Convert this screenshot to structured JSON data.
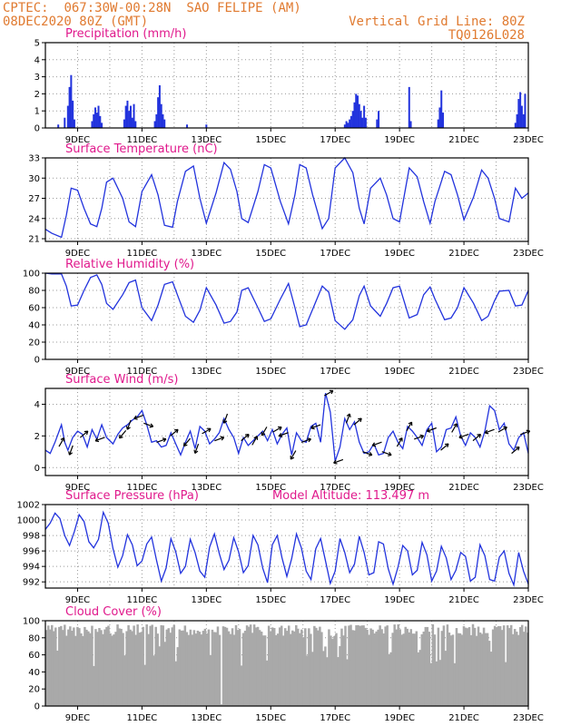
{
  "header": {
    "source": "CPTEC:",
    "coords": "067:30W-00:28N",
    "location": "SAO FELIPE (AM)",
    "date": "08DEC2020 80Z (GMT)",
    "grid_note": "Vertical Grid Line: 80Z",
    "code": "TQ0126L028"
  },
  "colors": {
    "header_text": "#e07a30",
    "title_text": "#e0198c",
    "series": "#2233dd",
    "cloud": "#a9a9a9"
  },
  "x_ticks": [
    "9DEC",
    "11DEC",
    "13DEC",
    "15DEC",
    "17DEC",
    "19DEC",
    "21DEC",
    "23DEC"
  ],
  "x_range_days": [
    8.0,
    23.0
  ],
  "chart_data": [
    {
      "id": "precip",
      "type": "bar",
      "title": "Precipitation (mm/h)",
      "ylim": [
        0,
        5
      ],
      "yticks": [
        "0",
        "1",
        "2",
        "3",
        "4",
        "5"
      ],
      "x": [
        8.4,
        8.6,
        8.7,
        8.75,
        8.8,
        8.85,
        8.9,
        9.45,
        9.5,
        9.55,
        9.6,
        9.65,
        9.7,
        9.75,
        10.45,
        10.5,
        10.55,
        10.6,
        10.65,
        10.7,
        10.75,
        10.8,
        11.4,
        11.45,
        11.5,
        11.55,
        11.6,
        11.65,
        11.7,
        12.4,
        13.0,
        17.3,
        17.35,
        17.4,
        17.45,
        17.5,
        17.55,
        17.6,
        17.65,
        17.7,
        17.75,
        17.8,
        17.85,
        17.9,
        17.95,
        18.3,
        18.35,
        19.3,
        19.35,
        20.2,
        20.25,
        20.3,
        20.35,
        22.6,
        22.65,
        22.7,
        22.75,
        22.8,
        22.85,
        22.9
      ],
      "values": [
        0.2,
        0.6,
        1.3,
        2.4,
        3.1,
        1.6,
        0.5,
        0.4,
        0.8,
        1.2,
        0.9,
        1.3,
        0.7,
        0.3,
        0.5,
        1.3,
        1.6,
        1.0,
        1.3,
        0.6,
        1.4,
        0.4,
        0.4,
        0.8,
        1.8,
        2.5,
        1.4,
        0.8,
        0.5,
        0.2,
        0.2,
        0.2,
        0.4,
        0.3,
        0.5,
        0.7,
        1.0,
        1.5,
        2.0,
        1.9,
        1.4,
        1.0,
        0.6,
        1.3,
        0.6,
        0.5,
        1.0,
        2.4,
        0.4,
        0.5,
        1.2,
        2.2,
        0.9,
        0.3,
        0.8,
        1.7,
        2.1,
        1.3,
        0.8,
        2.0
      ]
    },
    {
      "id": "temp",
      "type": "line",
      "title": "Surface Temperature (nC)",
      "ylim": [
        20.6,
        33
      ],
      "yticks": [
        "21",
        "24",
        "27",
        "30",
        "33"
      ],
      "yticks_values": [
        21,
        24,
        27,
        30,
        33
      ],
      "x": [
        8.0,
        8.2,
        8.5,
        8.65,
        8.8,
        9.0,
        9.2,
        9.4,
        9.6,
        9.75,
        9.9,
        10.1,
        10.4,
        10.6,
        10.8,
        11.0,
        11.3,
        11.5,
        11.7,
        11.95,
        12.1,
        12.35,
        12.6,
        12.8,
        13.0,
        13.3,
        13.55,
        13.75,
        13.95,
        14.1,
        14.3,
        14.6,
        14.8,
        15.0,
        15.3,
        15.55,
        15.75,
        15.9,
        16.1,
        16.3,
        16.6,
        16.8,
        17.0,
        17.3,
        17.55,
        17.75,
        17.9,
        18.1,
        18.4,
        18.6,
        18.8,
        19.0,
        19.3,
        19.55,
        19.75,
        19.95,
        20.1,
        20.4,
        20.6,
        20.8,
        21.0,
        21.3,
        21.55,
        21.75,
        21.95,
        22.1,
        22.4,
        22.6,
        22.8,
        23.0
      ],
      "values": [
        22.4,
        21.8,
        21.2,
        24.5,
        28.5,
        28.2,
        25.5,
        23.2,
        22.8,
        25.5,
        29.4,
        30.0,
        27.0,
        23.5,
        22.8,
        28.0,
        30.5,
        27.5,
        23.0,
        22.7,
        26.5,
        31.0,
        31.8,
        27.0,
        23.3,
        27.8,
        32.3,
        31.3,
        28.0,
        24.0,
        23.4,
        28.0,
        32.0,
        31.5,
        26.5,
        23.2,
        27.5,
        32.0,
        31.5,
        27.5,
        22.5,
        24.0,
        31.5,
        33.0,
        30.8,
        25.5,
        23.2,
        28.5,
        30.0,
        27.5,
        24.0,
        23.5,
        31.5,
        30.2,
        26.5,
        23.3,
        26.5,
        31.0,
        30.5,
        27.5,
        23.8,
        27.2,
        31.2,
        30.0,
        27.0,
        24.0,
        23.5,
        28.5,
        27.0,
        27.8
      ]
    },
    {
      "id": "rh",
      "type": "line",
      "title": "Relative Humidity (%)",
      "ylim": [
        0,
        100
      ],
      "yticks": [
        "0",
        "20",
        "40",
        "60",
        "80",
        "100"
      ],
      "x": [
        8.0,
        8.2,
        8.5,
        8.65,
        8.8,
        9.0,
        9.2,
        9.4,
        9.6,
        9.75,
        9.9,
        10.1,
        10.4,
        10.6,
        10.8,
        11.0,
        11.3,
        11.5,
        11.7,
        11.95,
        12.1,
        12.35,
        12.6,
        12.8,
        13.0,
        13.3,
        13.55,
        13.75,
        13.95,
        14.1,
        14.3,
        14.6,
        14.8,
        15.0,
        15.3,
        15.55,
        15.75,
        15.9,
        16.1,
        16.3,
        16.6,
        16.8,
        17.0,
        17.3,
        17.55,
        17.75,
        17.9,
        18.1,
        18.4,
        18.6,
        18.8,
        19.0,
        19.3,
        19.55,
        19.75,
        19.95,
        20.1,
        20.4,
        20.6,
        20.8,
        21.0,
        21.3,
        21.55,
        21.75,
        21.95,
        22.1,
        22.4,
        22.6,
        22.8,
        23.0
      ],
      "values": [
        100,
        99,
        99,
        85,
        62,
        63,
        80,
        95,
        98,
        87,
        65,
        58,
        75,
        89,
        92,
        60,
        45,
        63,
        87,
        90,
        75,
        50,
        43,
        57,
        83,
        63,
        42,
        44,
        55,
        80,
        83,
        60,
        44,
        47,
        70,
        88,
        60,
        38,
        40,
        58,
        85,
        78,
        45,
        35,
        46,
        74,
        85,
        62,
        50,
        65,
        83,
        85,
        48,
        52,
        75,
        84,
        70,
        46,
        48,
        60,
        83,
        65,
        45,
        50,
        68,
        79,
        80,
        62,
        63,
        80
      ]
    },
    {
      "id": "wind",
      "type": "line",
      "title": "Surface Wind (m/s)",
      "ylim": [
        -0.5,
        5
      ],
      "yticks": [
        "0",
        "2",
        "4"
      ],
      "yticks_values": [
        0,
        2,
        4
      ],
      "x": [
        8.0,
        8.15,
        8.3,
        8.5,
        8.6,
        8.7,
        8.85,
        9.0,
        9.15,
        9.3,
        9.45,
        9.6,
        9.75,
        9.9,
        10.1,
        10.25,
        10.4,
        10.55,
        10.7,
        10.85,
        11.0,
        11.15,
        11.3,
        11.45,
        11.6,
        11.75,
        11.9,
        12.05,
        12.2,
        12.35,
        12.5,
        12.65,
        12.8,
        12.95,
        13.1,
        13.25,
        13.4,
        13.55,
        13.7,
        13.85,
        14.0,
        14.15,
        14.3,
        14.45,
        14.6,
        14.75,
        14.9,
        15.05,
        15.2,
        15.35,
        15.5,
        15.65,
        15.8,
        15.95,
        16.1,
        16.25,
        16.4,
        16.55,
        16.7,
        16.85,
        17.0,
        17.15,
        17.3,
        17.45,
        17.6,
        17.75,
        17.9,
        18.05,
        18.2,
        18.35,
        18.5,
        18.65,
        18.8,
        18.95,
        19.1,
        19.25,
        19.4,
        19.55,
        19.7,
        19.85,
        20.0,
        20.15,
        20.3,
        20.45,
        20.6,
        20.75,
        20.9,
        21.05,
        21.2,
        21.35,
        21.5,
        21.65,
        21.8,
        21.95,
        22.1,
        22.25,
        22.4,
        22.55,
        22.7,
        22.85,
        23.0
      ],
      "values": [
        1.1,
        0.9,
        1.6,
        2.7,
        1.6,
        1.1,
        1.9,
        2.3,
        2.1,
        1.3,
        2.4,
        1.8,
        2.7,
        1.9,
        1.5,
        2.1,
        2.5,
        2.7,
        3.0,
        3.2,
        3.6,
        2.7,
        1.6,
        1.7,
        1.3,
        1.4,
        2.2,
        1.5,
        0.8,
        1.6,
        2.3,
        1.2,
        2.6,
        2.3,
        1.5,
        1.8,
        2.2,
        3.1,
        2.4,
        1.9,
        0.9,
        1.9,
        1.4,
        1.7,
        2.0,
        2.3,
        1.7,
        2.4,
        1.5,
        2.1,
        2.5,
        0.8,
        2.2,
        1.7,
        1.6,
        2.6,
        2.8,
        1.6,
        4.7,
        3.5,
        0.4,
        1.3,
        3.1,
        2.4,
        2.9,
        1.6,
        0.9,
        1.0,
        1.5,
        0.8,
        0.9,
        1.9,
        2.3,
        1.6,
        1.2,
        2.6,
        2.3,
        1.9,
        1.4,
        2.4,
        2.8,
        1.0,
        1.3,
        2.4,
        2.5,
        3.2,
        2.0,
        1.4,
        2.2,
        1.9,
        1.3,
        2.3,
        3.9,
        3.6,
        2.4,
        2.8,
        1.5,
        1.1,
        1.9,
        2.2,
        0.9
      ],
      "wind_barbs_x": [
        8.5,
        8.8,
        9.2,
        9.7,
        10.4,
        10.6,
        10.9,
        11.2,
        11.6,
        12.0,
        12.4,
        12.7,
        13.0,
        13.4,
        13.6,
        14.2,
        14.5,
        14.8,
        15.2,
        15.4,
        15.7,
        16.1,
        16.4,
        16.8,
        17.1,
        17.4,
        17.7,
        18.0,
        18.3,
        18.6,
        19.0,
        19.3,
        19.6,
        20.0,
        20.4,
        20.7,
        21.0,
        21.4,
        21.8,
        22.2,
        22.6,
        22.9
      ],
      "wind_barbs_dir_deg": [
        60,
        250,
        40,
        200,
        230,
        250,
        200,
        340,
        20,
        40,
        230,
        250,
        30,
        20,
        250,
        40,
        60,
        240,
        30,
        200,
        240,
        20,
        200,
        30,
        200,
        70,
        40,
        340,
        200,
        340,
        60,
        60,
        20,
        200,
        40,
        60,
        200,
        40,
        200,
        30,
        40,
        20
      ]
    },
    {
      "id": "pressure",
      "type": "line",
      "title": "Surface Pressure (hPa)",
      "subtitle": "Model Altitude: 113.497 m",
      "ylim": [
        991.2,
        1002
      ],
      "yticks": [
        "992",
        "994",
        "996",
        "998",
        "1000",
        "1002"
      ],
      "yticks_values": [
        992,
        994,
        996,
        998,
        1000,
        1002
      ],
      "x": [
        8.0,
        8.15,
        8.3,
        8.45,
        8.6,
        8.75,
        8.9,
        9.05,
        9.2,
        9.35,
        9.5,
        9.65,
        9.8,
        9.95,
        10.1,
        10.25,
        10.4,
        10.55,
        10.7,
        10.85,
        11.0,
        11.15,
        11.3,
        11.45,
        11.6,
        11.75,
        11.9,
        12.05,
        12.2,
        12.35,
        12.5,
        12.65,
        12.8,
        12.95,
        13.1,
        13.25,
        13.4,
        13.55,
        13.7,
        13.85,
        14.0,
        14.15,
        14.3,
        14.45,
        14.6,
        14.75,
        14.9,
        15.05,
        15.2,
        15.35,
        15.5,
        15.65,
        15.8,
        15.95,
        16.1,
        16.25,
        16.4,
        16.55,
        16.7,
        16.85,
        17.0,
        17.15,
        17.3,
        17.45,
        17.6,
        17.75,
        17.9,
        18.05,
        18.2,
        18.35,
        18.5,
        18.65,
        18.8,
        18.95,
        19.1,
        19.25,
        19.4,
        19.55,
        19.7,
        19.85,
        20.0,
        20.15,
        20.3,
        20.45,
        20.6,
        20.75,
        20.9,
        21.05,
        21.2,
        21.35,
        21.5,
        21.65,
        21.8,
        21.95,
        22.1,
        22.25,
        22.4,
        22.55,
        22.7,
        22.85,
        23.0
      ],
      "values": [
        998.8,
        999.6,
        1000.9,
        1000.2,
        998.0,
        996.7,
        998.5,
        1000.7,
        999.8,
        997.2,
        996.4,
        997.5,
        1001.0,
        999.6,
        996.3,
        993.9,
        995.4,
        998.1,
        996.8,
        994.1,
        994.7,
        996.9,
        997.8,
        994.8,
        992.1,
        993.8,
        997.6,
        995.9,
        993.1,
        994.0,
        997.5,
        995.8,
        993.4,
        992.6,
        996.5,
        998.2,
        995.7,
        993.6,
        994.8,
        997.7,
        995.9,
        993.2,
        994.1,
        998.0,
        996.8,
        993.8,
        991.9,
        996.8,
        998.0,
        995.1,
        992.7,
        995.0,
        998.2,
        996.4,
        993.4,
        992.3,
        996.3,
        997.6,
        994.7,
        991.8,
        993.4,
        997.6,
        995.8,
        993.2,
        994.3,
        997.9,
        995.8,
        992.9,
        993.2,
        997.2,
        996.9,
        993.7,
        991.7,
        993.9,
        996.7,
        996.0,
        992.9,
        993.5,
        997.1,
        995.5,
        992.1,
        993.4,
        996.6,
        995.1,
        992.3,
        993.5,
        995.8,
        995.3,
        992.1,
        992.6,
        996.8,
        995.4,
        992.3,
        992.1,
        995.2,
        996.0,
        993.1,
        991.6,
        995.8,
        993.4,
        991.7
      ]
    },
    {
      "id": "cloud",
      "type": "area",
      "title": "Cloud Cover (%)",
      "ylim": [
        0,
        100
      ],
      "yticks": [
        "0",
        "20",
        "40",
        "60",
        "80",
        "100"
      ]
    }
  ]
}
